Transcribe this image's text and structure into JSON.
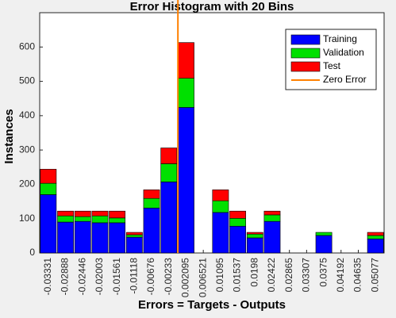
{
  "chart_data": {
    "type": "stacked_histogram",
    "title": "Error Histogram with 20 Bins",
    "x_label": "Errors = Targets - Outputs",
    "y_label": "Instances",
    "x": [
      -0.03331,
      -0.02888,
      -0.02446,
      -0.02003,
      -0.01561,
      -0.01118,
      -0.00676,
      -0.00233,
      0.002095,
      0.006521,
      0.01095,
      0.01537,
      0.0198,
      0.02422,
      0.02865,
      0.03307,
      0.0375,
      0.04192,
      0.04635,
      0.05077
    ],
    "xticks": [
      -0.03331,
      -0.02888,
      -0.02446,
      -0.02003,
      -0.01561,
      -0.01118,
      -0.00676,
      -0.00233,
      0.002095,
      0.006521,
      0.01095,
      0.01537,
      0.0198,
      0.02422,
      0.02865,
      0.03307,
      0.0375,
      0.04192,
      0.04635,
      0.05077
    ],
    "xlim": [
      -0.03552,
      0.05298
    ],
    "ylim": [
      0,
      700
    ],
    "yticks": [
      0,
      100,
      200,
      300,
      400,
      500,
      600
    ],
    "series": [
      {
        "name": "Training",
        "color": "#0000ff",
        "values": [
          170,
          90,
          92,
          88,
          88,
          46,
          131,
          207,
          424,
          0,
          118,
          78,
          44,
          92,
          0,
          0,
          51,
          0,
          0,
          41
        ]
      },
      {
        "name": "Validation",
        "color": "#00e000",
        "values": [
          33,
          18,
          14,
          20,
          14,
          7,
          28,
          53,
          85,
          0,
          34,
          23,
          11,
          19,
          0,
          0,
          9,
          0,
          0,
          10
        ]
      },
      {
        "name": "Test",
        "color": "#ff0000",
        "values": [
          41,
          14,
          16,
          14,
          20,
          7,
          25,
          46,
          104,
          0,
          32,
          21,
          5,
          11,
          0,
          0,
          0,
          0,
          0,
          9
        ]
      }
    ],
    "reference_line": {
      "name": "Zero Error",
      "x": 0,
      "color": "#ff8000"
    },
    "legend": "northeast"
  }
}
